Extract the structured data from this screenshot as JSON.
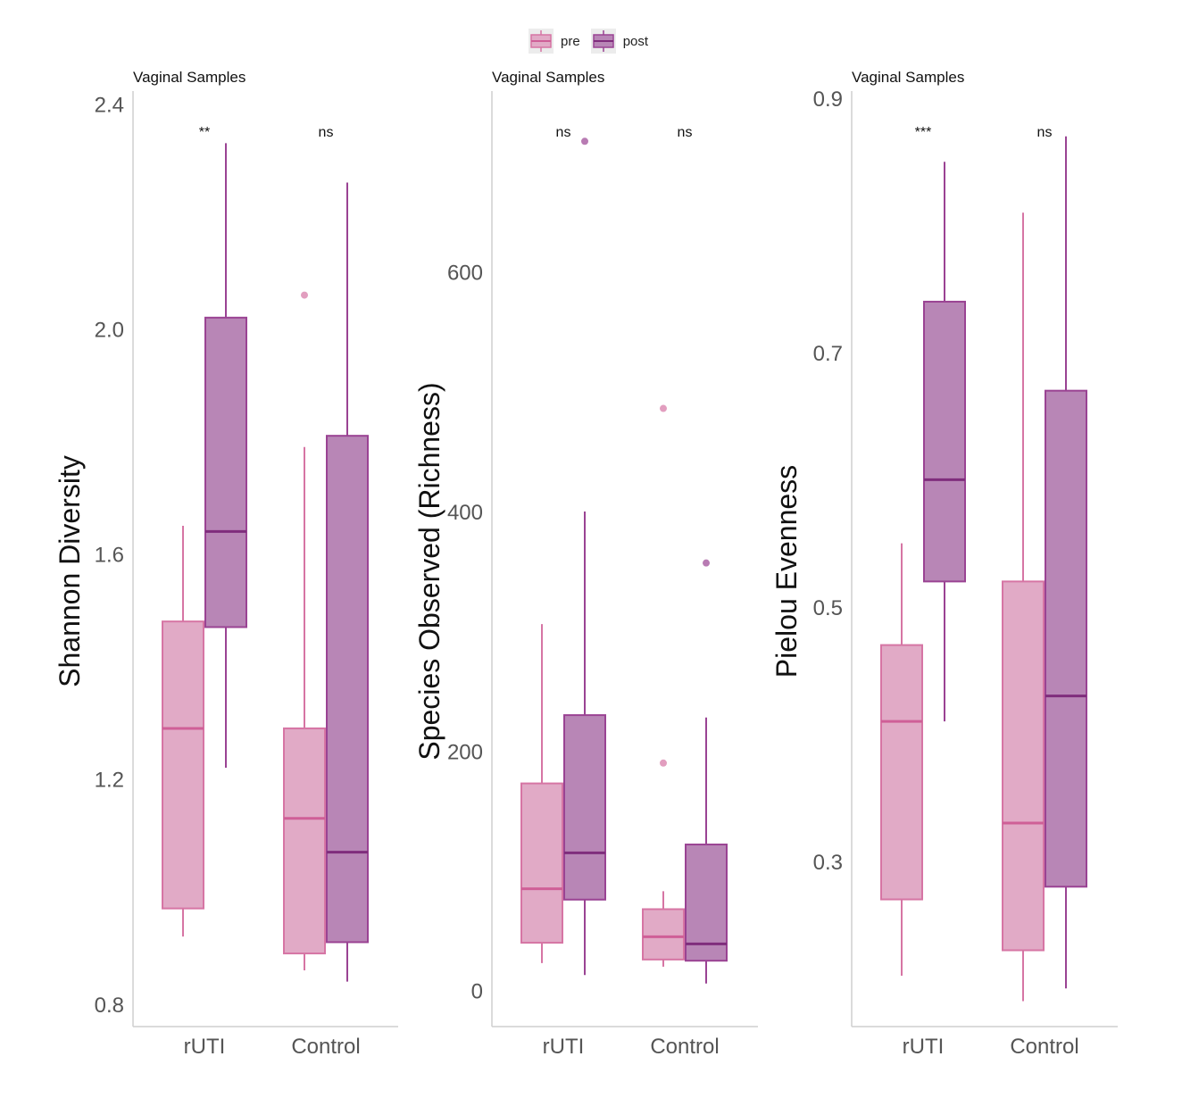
{
  "legend": {
    "items": [
      {
        "label": "pre",
        "fill": "#e1aac6",
        "stroke": "#d675a4"
      },
      {
        "label": "post",
        "fill": "#b886b6",
        "stroke": "#9a4393"
      }
    ]
  },
  "colors": {
    "pre_fill": "#e1aac6",
    "pre_stroke": "#d675a4",
    "pre_median": "#cf5f97",
    "post_fill": "#b886b6",
    "post_stroke": "#9a4393",
    "post_median": "#7f2d7c",
    "axis": "#cfcfcf",
    "tick_text": "#555555"
  },
  "chart_data": [
    {
      "type": "box",
      "title": "Vaginal Samples",
      "ylabel": "Shannon Diversity",
      "xlabel": "",
      "categories": [
        "rUTI",
        "Control"
      ],
      "ylim": [
        0.76,
        2.41
      ],
      "yticks": [
        0.8,
        1.2,
        1.6,
        2.0,
        2.4
      ],
      "ytick_labels": [
        "0.8",
        "1.2",
        "1.6",
        "2.0",
        "2.4"
      ],
      "significance": [
        "**",
        "ns"
      ],
      "series": [
        {
          "name": "pre",
          "boxes": [
            {
              "category": "rUTI",
              "whisker_low": 0.92,
              "q1": 0.97,
              "median": 1.29,
              "q3": 1.48,
              "whisker_high": 1.65,
              "outliers": []
            },
            {
              "category": "Control",
              "whisker_low": 0.86,
              "q1": 0.89,
              "median": 1.13,
              "q3": 1.29,
              "whisker_high": 1.79,
              "outliers": [
                2.06
              ]
            }
          ]
        },
        {
          "name": "post",
          "boxes": [
            {
              "category": "rUTI",
              "whisker_low": 1.22,
              "q1": 1.47,
              "median": 1.64,
              "q3": 2.02,
              "whisker_high": 2.33,
              "outliers": []
            },
            {
              "category": "Control",
              "whisker_low": 0.84,
              "q1": 0.91,
              "median": 1.07,
              "q3": 1.81,
              "whisker_high": 2.26,
              "outliers": []
            }
          ]
        }
      ]
    },
    {
      "type": "box",
      "title": "Vaginal Samples",
      "ylabel": "Species Observed (Richness)",
      "xlabel": "",
      "categories": [
        "rUTI",
        "Control"
      ],
      "ylim": [
        -30,
        745
      ],
      "yticks": [
        0,
        200,
        400,
        600
      ],
      "ytick_labels": [
        "0",
        "200",
        "400",
        "600"
      ],
      "significance": [
        "ns",
        "ns"
      ],
      "series": [
        {
          "name": "pre",
          "boxes": [
            {
              "category": "rUTI",
              "whisker_low": 23,
              "q1": 40,
              "median": 85,
              "q3": 173,
              "whisker_high": 306,
              "outliers": []
            },
            {
              "category": "Control",
              "whisker_low": 20,
              "q1": 26,
              "median": 45,
              "q3": 68,
              "whisker_high": 83,
              "outliers": [
                190,
                486
              ]
            }
          ]
        },
        {
          "name": "post",
          "boxes": [
            {
              "category": "rUTI",
              "whisker_low": 13,
              "q1": 76,
              "median": 115,
              "q3": 230,
              "whisker_high": 400,
              "outliers": [
                709
              ]
            },
            {
              "category": "Control",
              "whisker_low": 6,
              "q1": 25,
              "median": 39,
              "q3": 122,
              "whisker_high": 228,
              "outliers": [
                357
              ]
            }
          ]
        }
      ]
    },
    {
      "type": "box",
      "title": "Vaginal Samples",
      "ylabel": "Pielou Evenness",
      "xlabel": "",
      "categories": [
        "rUTI",
        "Control"
      ],
      "ylim": [
        0.17,
        0.9
      ],
      "yticks": [
        0.3,
        0.5,
        0.7,
        0.9
      ],
      "ytick_labels": [
        "0.3",
        "0.5",
        "0.7",
        "0.9"
      ],
      "significance": [
        "***",
        "ns"
      ],
      "series": [
        {
          "name": "pre",
          "boxes": [
            {
              "category": "rUTI",
              "whisker_low": 0.21,
              "q1": 0.27,
              "median": 0.41,
              "q3": 0.47,
              "whisker_high": 0.55,
              "outliers": []
            },
            {
              "category": "Control",
              "whisker_low": 0.19,
              "q1": 0.23,
              "median": 0.33,
              "q3": 0.52,
              "whisker_high": 0.81,
              "outliers": []
            }
          ]
        },
        {
          "name": "post",
          "boxes": [
            {
              "category": "rUTI",
              "whisker_low": 0.41,
              "q1": 0.52,
              "median": 0.6,
              "q3": 0.74,
              "whisker_high": 0.85,
              "outliers": []
            },
            {
              "category": "Control",
              "whisker_low": 0.2,
              "q1": 0.28,
              "median": 0.43,
              "q3": 0.67,
              "whisker_high": 0.87,
              "outliers": []
            }
          ]
        }
      ]
    }
  ]
}
